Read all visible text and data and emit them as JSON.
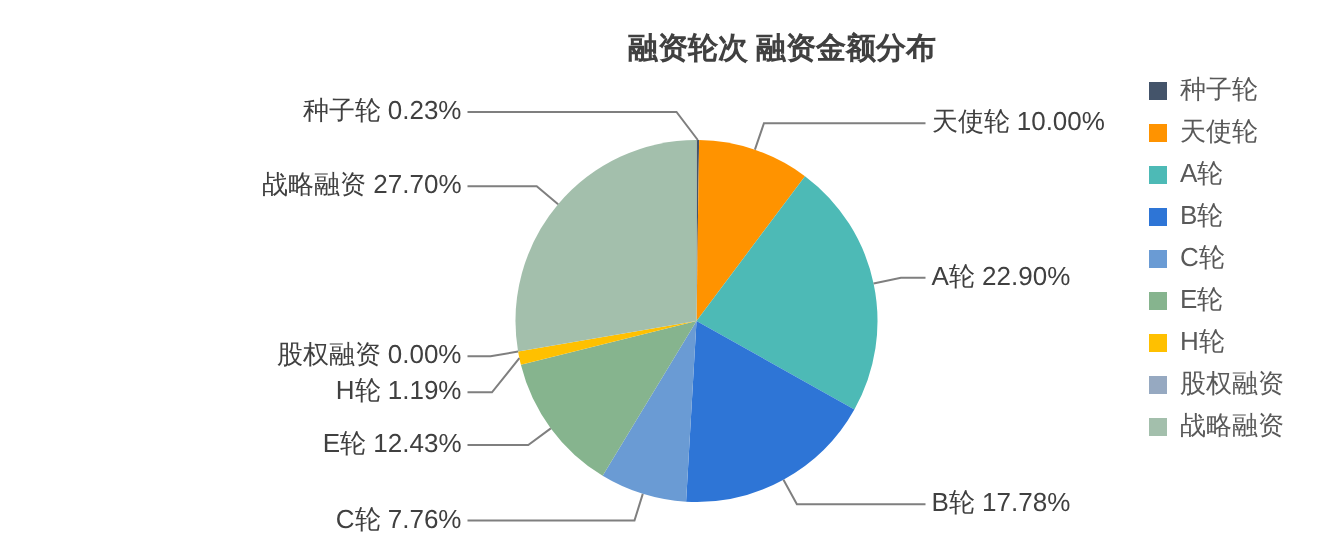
{
  "chart_data": {
    "type": "pie",
    "title": "融资轮次 融资金额分布",
    "categories": [
      "种子轮",
      "天使轮",
      "A轮",
      "B轮",
      "C轮",
      "E轮",
      "H轮",
      "股权融资",
      "战略融资"
    ],
    "values": [
      0.23,
      10.0,
      22.9,
      17.78,
      7.76,
      12.43,
      1.19,
      0.0,
      27.7
    ],
    "colors": [
      "#44546a",
      "#ff9300",
      "#4dbab6",
      "#2e75d6",
      "#6a9bd4",
      "#86b48e",
      "#ffc000",
      "#96a9c1",
      "#a3bfac"
    ],
    "value_labels": [
      "0.23%",
      "10.00%",
      "22.90%",
      "17.78%",
      "7.76%",
      "12.43%",
      "1.19%",
      "0.00%",
      "27.70%"
    ],
    "legend": "right"
  }
}
